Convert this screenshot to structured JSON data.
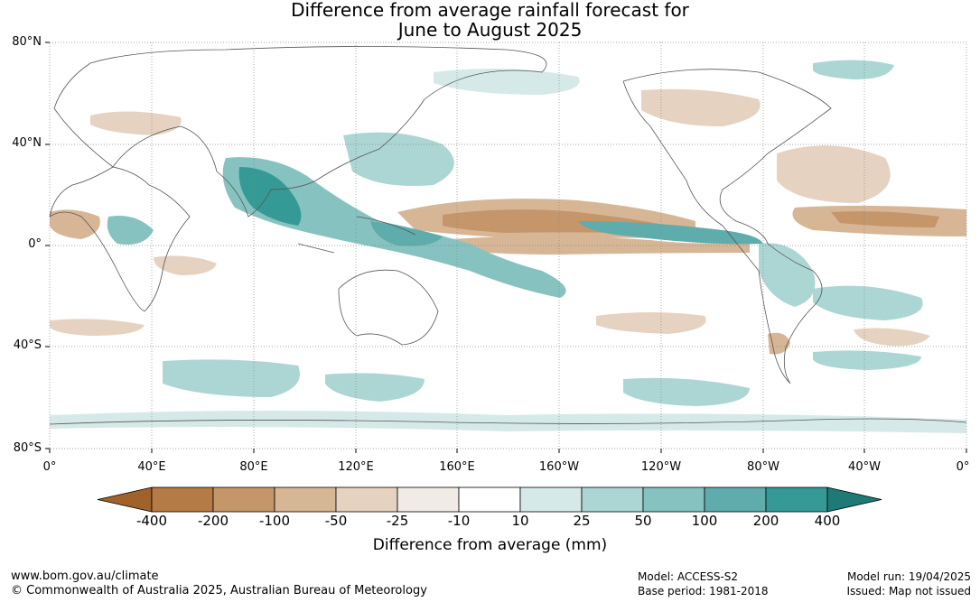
{
  "title": {
    "line1": "Difference from average rainfall forecast for",
    "line2": "June to August 2025"
  },
  "map": {
    "lat_labels": [
      "80°N",
      "40°N",
      "0°",
      "40°S",
      "80°S"
    ],
    "lon_labels": [
      "0°",
      "40°E",
      "80°E",
      "120°E",
      "160°E",
      "160°W",
      "120°W",
      "80°W",
      "40°W",
      "0°"
    ]
  },
  "colorbar": {
    "title": "Difference from average (mm)",
    "ticks": [
      "-400",
      "-200",
      "-100",
      "-50",
      "-25",
      "-10",
      "10",
      "25",
      "50",
      "100",
      "200",
      "400"
    ],
    "colors": [
      "#a1612a",
      "#b57a45",
      "#c4966a",
      "#d7b696",
      "#e6d2c0",
      "#f1ebe6",
      "#ffffff",
      "#d5eae8",
      "#acd6d4",
      "#86c2c0",
      "#5eacab",
      "#359995",
      "#1e7a76"
    ]
  },
  "footer": {
    "url": "www.bom.gov.au/climate",
    "copyright": "© Commonwealth of Australia 2025, Australian Bureau of Meteorology",
    "model": "Model: ACCESS-S2",
    "base_period": "Base period: 1981-2018",
    "model_run": "Model run: 19/04/2025",
    "issued": "Issued: Map not issued"
  }
}
